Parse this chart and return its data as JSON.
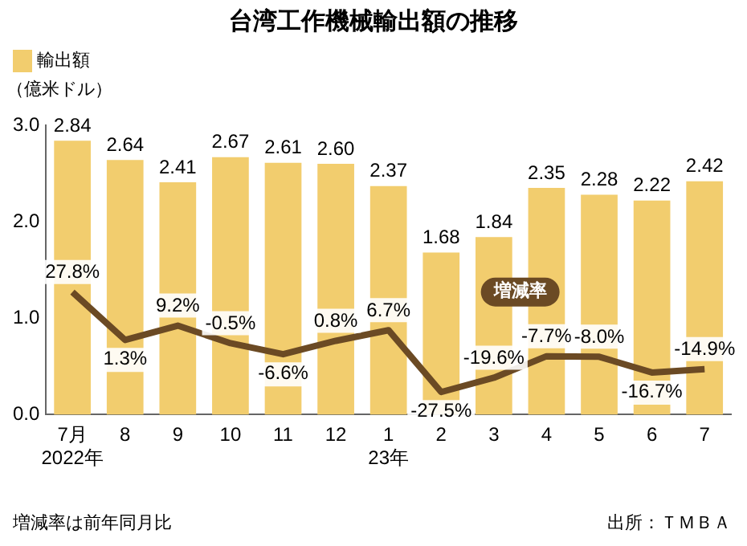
{
  "chart_data": {
    "type": "bar",
    "title": "台湾工作機械輸出額の推移",
    "ylabel": "（億米ドル）",
    "categories": [
      "7月\n2022年",
      "8",
      "9",
      "10",
      "11",
      "12",
      "1\n23年",
      "2",
      "3",
      "4",
      "5",
      "6",
      "7"
    ],
    "series": [
      {
        "name": "輸出額",
        "color": "#f2cd6e",
        "values": [
          2.84,
          2.64,
          2.41,
          2.67,
          2.61,
          2.6,
          2.37,
          1.68,
          1.84,
          2.35,
          2.28,
          2.22,
          2.42
        ],
        "value_labels": [
          "2.84",
          "2.64",
          "2.41",
          "2.67",
          "2.61",
          "2.60",
          "2.37",
          "1.68",
          "1.84",
          "2.35",
          "2.28",
          "2.22",
          "2.42"
        ]
      },
      {
        "name": "増減率",
        "type": "line",
        "axis": "y2",
        "color": "#6b4a24",
        "values": [
          27.8,
          1.3,
          9.2,
          -0.5,
          -6.6,
          0.8,
          6.7,
          -27.5,
          -19.6,
          -7.7,
          -8.0,
          -16.7,
          -14.9
        ],
        "value_labels": [
          "27.8%",
          "1.3%",
          "9.2%",
          "-0.5%",
          "-6.6%",
          "0.8%",
          "6.7%",
          "-27.5%",
          "-19.6%",
          "-7.7%",
          "-8.0%",
          "-16.7%",
          "-14.9%"
        ]
      }
    ],
    "data_labels": true,
    "ylim": [
      0,
      3.0
    ],
    "yticks": [
      {
        "value": 0,
        "label": "0.0"
      },
      {
        "value": 1,
        "label": "1.0"
      },
      {
        "value": 2,
        "label": "2.0"
      },
      {
        "value": 3,
        "label": "3.0"
      }
    ],
    "y2lim": [
      -40,
      120
    ],
    "grid": false,
    "legend": "top left",
    "marker": "none",
    "line_style": "solid",
    "annotations": [
      "増減率は前年同月比",
      "出所：ＴＭＢＡ"
    ]
  }
}
